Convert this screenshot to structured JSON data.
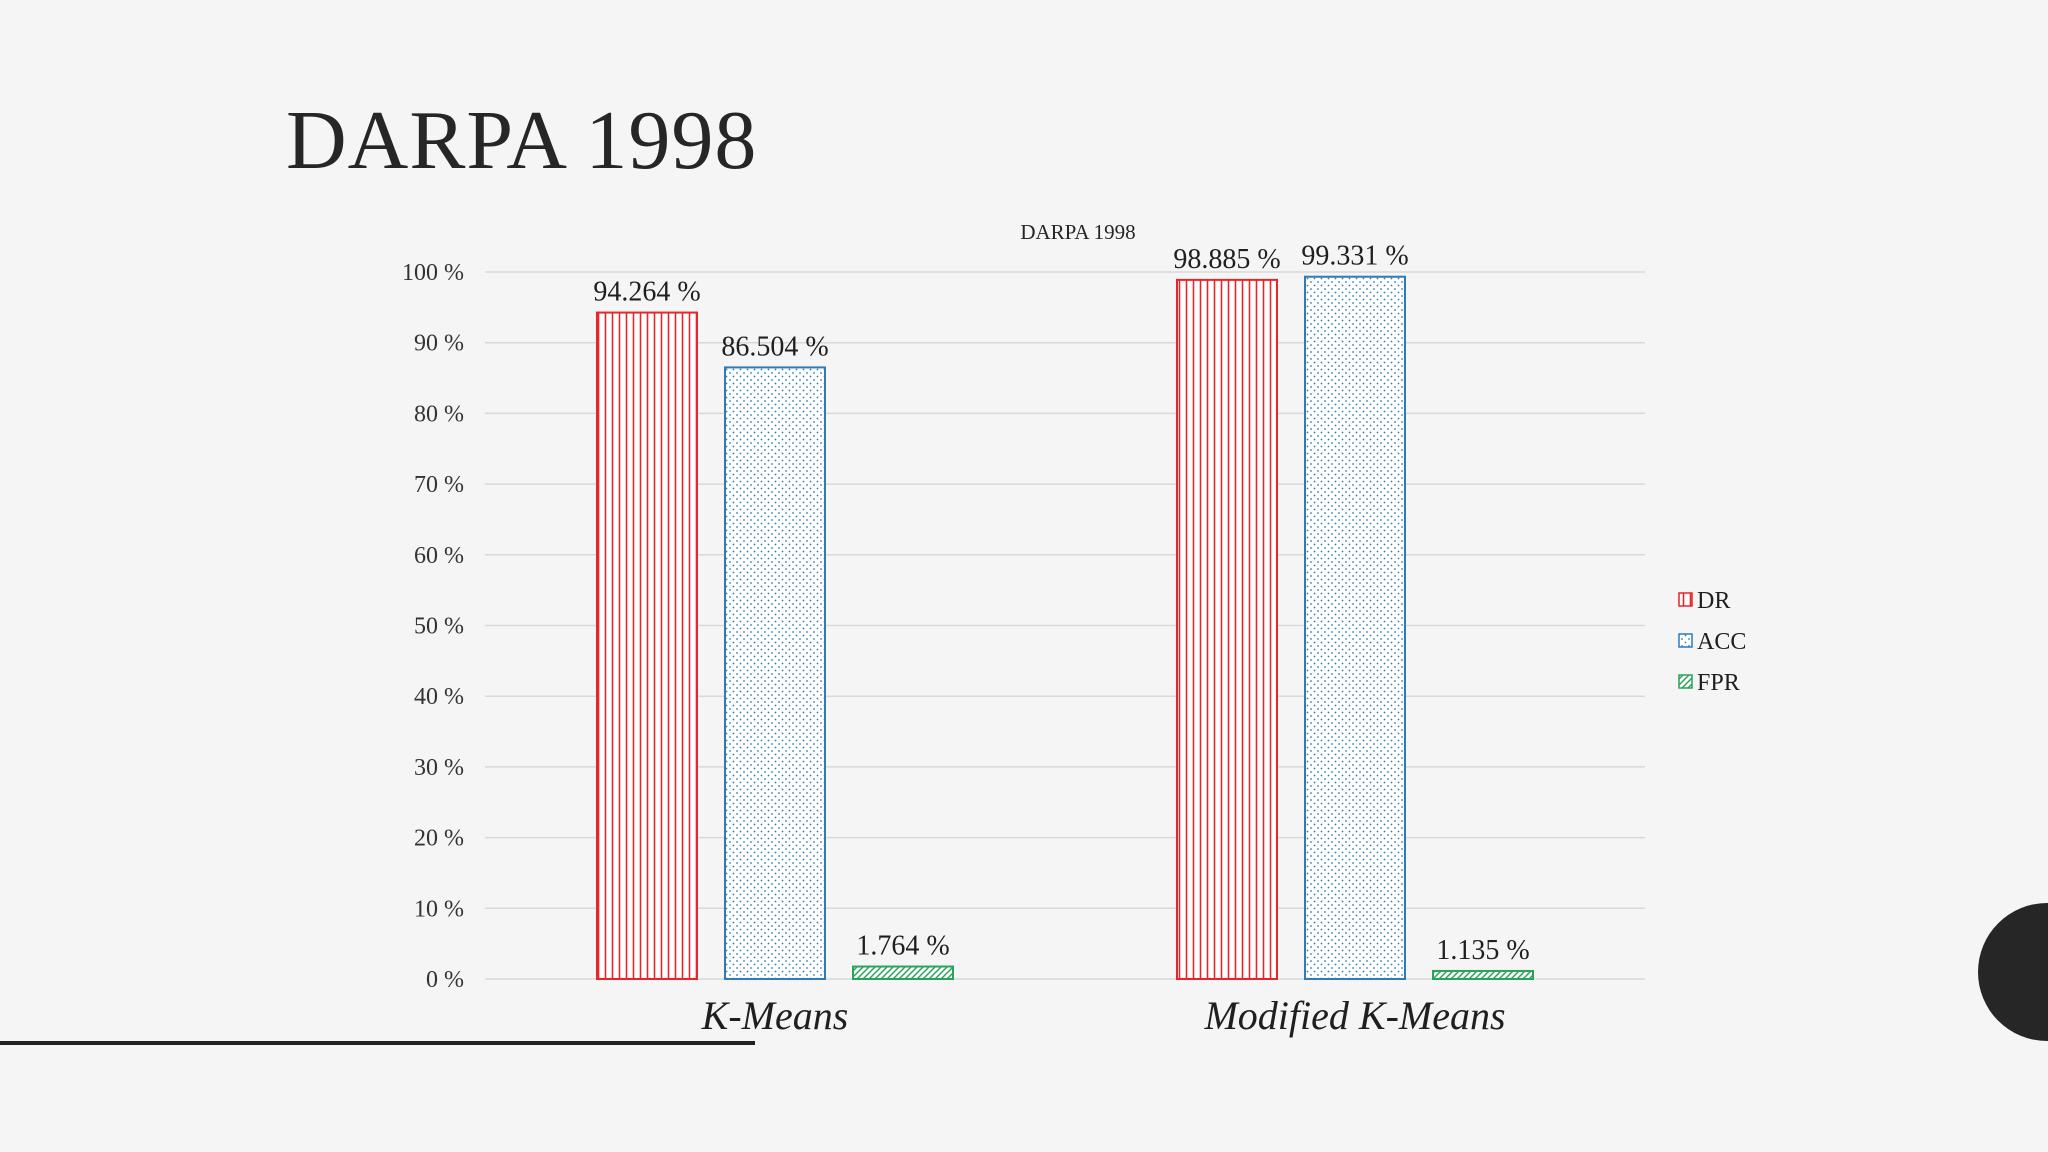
{
  "slide": {
    "title": "DARPA 1998"
  },
  "chart_data": {
    "type": "bar",
    "title": "DARPA 1998",
    "categories": [
      "K-Means",
      "Modified K-Means"
    ],
    "series": [
      {
        "name": "DR",
        "values": [
          94.264,
          98.885
        ],
        "labels": [
          "94.264 %",
          "98.885 %"
        ],
        "color": "#e8252a",
        "pattern": "vertical-lines"
      },
      {
        "name": "ACC",
        "values": [
          86.504,
          99.331
        ],
        "labels": [
          "86.504 %",
          "99.331 %"
        ],
        "color": "#2e7bb8",
        "pattern": "dots"
      },
      {
        "name": "FPR",
        "values": [
          1.764,
          1.135
        ],
        "labels": [
          "1.764 %",
          "1.135 %"
        ],
        "color": "#2aa35a",
        "pattern": "diagonal-lines"
      }
    ],
    "ylim": [
      0,
      100
    ],
    "yticks": [
      "0 %",
      "10 %",
      "20 %",
      "30 %",
      "40 %",
      "50 %",
      "60 %",
      "70 %",
      "80 %",
      "90 %",
      "100 %"
    ],
    "grid": true,
    "legend": "right"
  }
}
